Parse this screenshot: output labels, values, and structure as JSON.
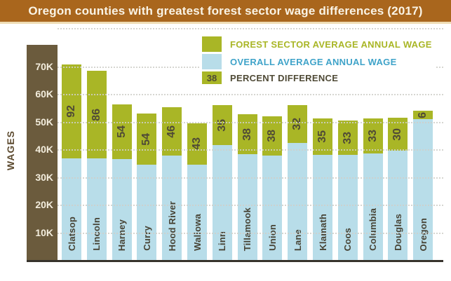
{
  "title": "Oregon counties with greatest forest sector wage differences (2017)",
  "y_axis": {
    "label": "WAGES",
    "ticks": [
      {
        "label": "70K",
        "value": 70
      },
      {
        "label": "60K",
        "value": 60
      },
      {
        "label": "50K",
        "value": 50
      },
      {
        "label": "40K",
        "value": 40
      },
      {
        "label": "30K",
        "value": 30
      },
      {
        "label": "20K",
        "value": 20
      },
      {
        "label": "10K",
        "value": 10
      }
    ]
  },
  "legend": {
    "forest": {
      "label": "FOREST SECTOR AVERAGE ANNUAL WAGE"
    },
    "overall": {
      "label": "OVERALL AVERAGE ANNUAL WAGE"
    },
    "percent": {
      "label": "PERCENT DIFFERENCE",
      "swatch_text": "38"
    }
  },
  "colors": {
    "title_bar": "#a9661d",
    "forest_green": "#a9b626",
    "overall_blue": "#b8dde9",
    "axis_brown": "#6b5b3d",
    "dark_label": "#4f4a36",
    "legend_blue_text": "#3fa3c9",
    "gridline": "#d0d0ca"
  },
  "chart_data": {
    "type": "bar",
    "subtype": "stacked-overlay",
    "title": "Oregon counties with greatest forest sector wage differences (2017)",
    "categories": [
      "Clatsop",
      "Lincoln",
      "Harney",
      "Curry",
      "Hood River",
      "Wallowa",
      "Linn",
      "Tillamook",
      "Union",
      "Lane",
      "Klamath",
      "Coos",
      "Columbia",
      "Douglas",
      "Oregon"
    ],
    "series": [
      {
        "name": "Forest sector average annual wage",
        "unit": "thousand USD",
        "values": [
          70.6,
          68.3,
          56.2,
          52.9,
          55.1,
          49.4,
          56.0,
          52.7,
          51.9,
          56.0,
          51.1,
          50.4,
          51.1,
          51.4,
          53.8
        ]
      },
      {
        "name": "Overall average annual wage",
        "unit": "thousand USD",
        "values": [
          36.8,
          36.7,
          36.5,
          34.4,
          37.7,
          34.5,
          41.5,
          38.2,
          37.6,
          42.4,
          37.9,
          37.9,
          38.4,
          39.5,
          50.8
        ]
      },
      {
        "name": "Percent difference",
        "unit": "%",
        "values": [
          92,
          86,
          54,
          54,
          46,
          43,
          35,
          38,
          38,
          32,
          35,
          33,
          33,
          30,
          6
        ]
      }
    ],
    "xlabel": "",
    "ylabel": "WAGES",
    "ylim": [
      0,
      84
    ],
    "ytick_interval": 10,
    "grid": true,
    "gridstyle": "dotted",
    "legend_position": "top-right"
  }
}
